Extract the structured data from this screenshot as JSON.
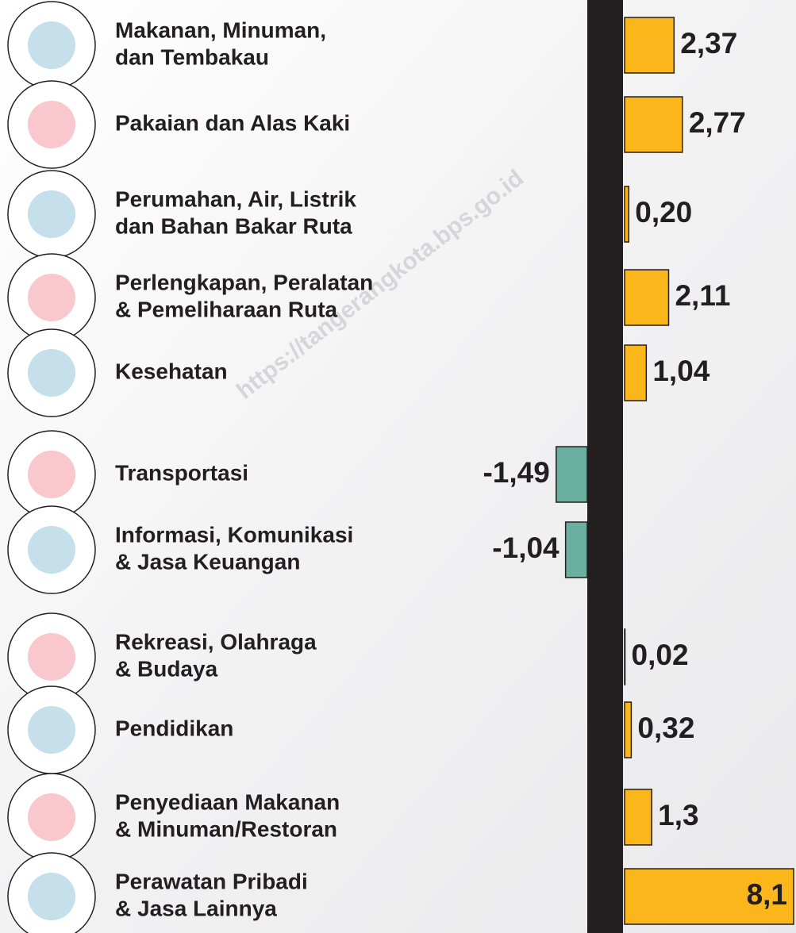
{
  "chart_data": {
    "type": "bar",
    "orientation": "horizontal",
    "watermark": "https://tangerangkota.bps.go.id",
    "categories": [
      [
        "Makanan, Minuman,",
        "dan Tembakau"
      ],
      [
        "Pakaian dan Alas Kaki"
      ],
      [
        "Perumahan, Air, Listrik",
        "dan Bahan Bakar Ruta"
      ],
      [
        "Perlengkapan, Peralatan",
        "& Pemeliharaan Ruta"
      ],
      [
        "Kesehatan"
      ],
      [
        "Transportasi"
      ],
      [
        "Informasi, Komunikasi",
        "& Jasa Keuangan"
      ],
      [
        "Rekreasi, Olahraga",
        "& Budaya"
      ],
      [
        "Pendidikan"
      ],
      [
        "Penyediaan Makanan",
        "& Minuman/Restoran"
      ],
      [
        "Perawatan Pribadi",
        "& Jasa Lainnya"
      ]
    ],
    "values": [
      2.37,
      2.77,
      0.2,
      2.11,
      1.04,
      -1.49,
      -1.04,
      0.02,
      0.32,
      1.3,
      8.1
    ],
    "value_labels": [
      "2,37",
      "2,77",
      "0,20",
      "2,11",
      "1,04",
      "-1,49",
      "-1,04",
      "0,02",
      "0,32",
      "1,3",
      "8,1"
    ],
    "positive_color": "#fbb61b",
    "negative_color": "#6aaf9f"
  }
}
